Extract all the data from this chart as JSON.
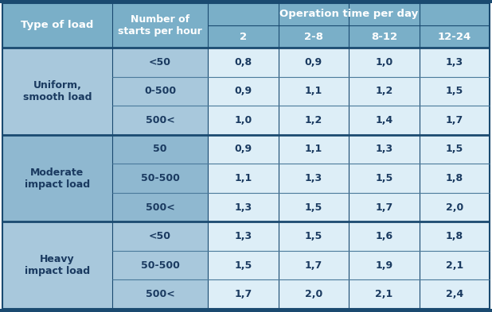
{
  "header_bg": "#7aafc8",
  "header_text_color": "#ffffff",
  "group_bg_1": "#a8c8dc",
  "group_bg_2": "#8fb8d0",
  "cell_bg": "#ddeef7",
  "border_dark": "#1a4a70",
  "border_thin": "#4a7a9b",
  "text_dark": "#1a3a60",
  "text_header": "#ffffff",
  "col1_header": "Type of load",
  "col2_header": "Number of\nstarts per hour",
  "operation_header": "Operation time per day",
  "op_subcols": [
    "2",
    "2-8",
    "8-12",
    "12-24"
  ],
  "load_groups": [
    {
      "label": "Uniform,\nsmooth load",
      "rows": [
        [
          "<50",
          "0,8",
          "0,9",
          "1,0",
          "1,3"
        ],
        [
          "0-500",
          "0,9",
          "1,1",
          "1,2",
          "1,5"
        ],
        [
          "500<",
          "1,0",
          "1,2",
          "1,4",
          "1,7"
        ]
      ]
    },
    {
      "label": "Moderate\nimpact load",
      "rows": [
        [
          "50",
          "0,9",
          "1,1",
          "1,3",
          "1,5"
        ],
        [
          "50-500",
          "1,1",
          "1,3",
          "1,5",
          "1,8"
        ],
        [
          "500<",
          "1,3",
          "1,5",
          "1,7",
          "2,0"
        ]
      ]
    },
    {
      "label": "Heavy\nimpact load",
      "rows": [
        [
          "<50",
          "1,3",
          "1,5",
          "1,6",
          "1,8"
        ],
        [
          "50-500",
          "1,5",
          "1,7",
          "1,9",
          "2,1"
        ],
        [
          "500<",
          "1,7",
          "2,0",
          "2,1",
          "2,4"
        ]
      ]
    }
  ],
  "fig_w": 6.18,
  "fig_h": 3.93,
  "dpi": 100
}
